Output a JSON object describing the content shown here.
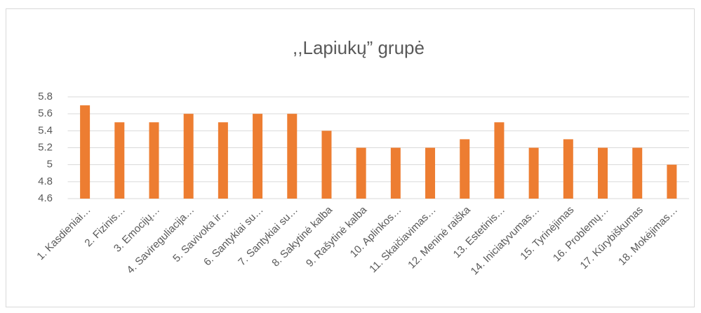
{
  "chart_data": {
    "type": "bar",
    "title": ",,Lapiukų” grupė",
    "categories": [
      "1. Kasdieniai…",
      "2. Fizinis…",
      "3. Emocijų…",
      "4. Savireguliacija…",
      "5. Savivoka ir…",
      "6. Santykiai su…",
      "7. Santykiai su…",
      "8. Sakytinė kalba",
      "9. Rašytinė kalba",
      "10. Aplinkos…",
      "11. Skaičiavimas…",
      "12. Meninė raiška",
      "13. Estetinis…",
      "14. Iniciatyvumas…",
      "15. Tyrinėjimas",
      "16. Problemų…",
      "17. Kūrybiškumas",
      "18. Mokėjimas…"
    ],
    "values": [
      5.7,
      5.5,
      5.5,
      5.6,
      5.5,
      5.6,
      5.6,
      5.4,
      5.2,
      5.2,
      5.2,
      5.3,
      5.5,
      5.2,
      5.3,
      5.2,
      5.2,
      5.0
    ],
    "color": "#ed7d31",
    "ylim": [
      4.6,
      5.8
    ],
    "yticks": [
      4.6,
      4.8,
      5,
      5.2,
      5.4,
      5.6,
      5.8
    ],
    "grid": true
  }
}
